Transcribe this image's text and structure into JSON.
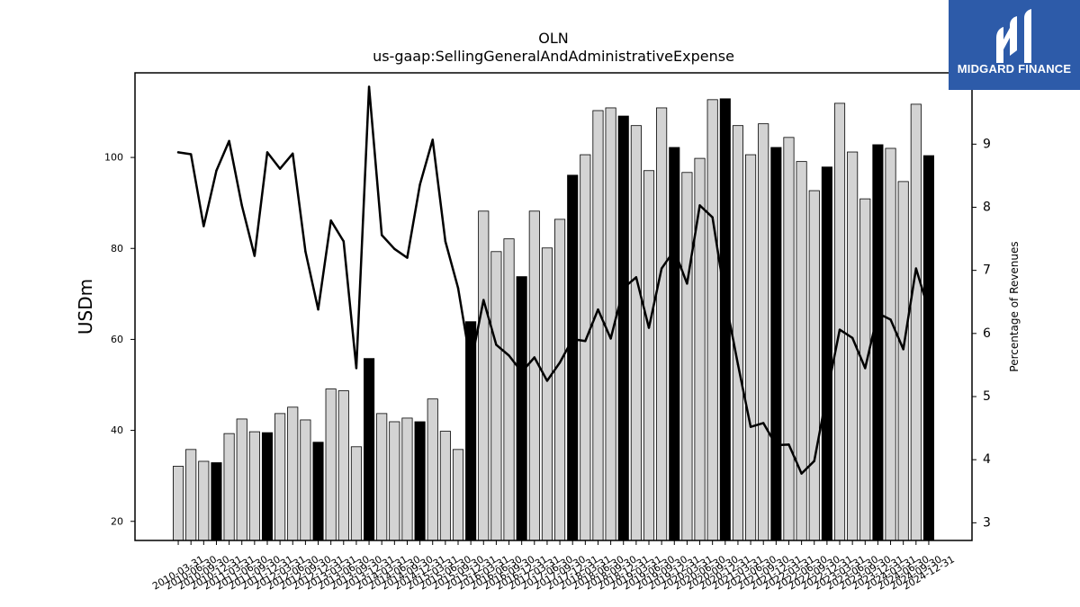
{
  "logo": {
    "text": "MIDGARD FINANCE",
    "icon": "midgard-logo-icon",
    "background": "#2d5ba9"
  },
  "chart_data": {
    "type": "bar",
    "title": "OLN",
    "subtitle": "us-gaap:SellingGeneralAndAdministrativeExpense",
    "xlabel": "",
    "ylabel": "USDm",
    "y2label": "Percentage of Revenues",
    "grid": false,
    "legend": "none",
    "ylim": [
      15.8,
      118.6
    ],
    "y2lim": [
      2.72,
      10.13
    ],
    "yticks": [
      20,
      40,
      60,
      80,
      100
    ],
    "y2ticks": [
      3,
      4,
      5,
      6,
      7,
      8,
      9
    ],
    "categories": [
      "2010-03-31",
      "2010-06-30",
      "2010-09-30",
      "2010-12-31",
      "2011-03-31",
      "2011-06-30",
      "2011-09-30",
      "2011-12-31",
      "2012-03-31",
      "2012-06-30",
      "2012-09-30",
      "2012-12-31",
      "2013-03-31",
      "2013-06-30",
      "2013-09-30",
      "2013-12-31",
      "2014-03-31",
      "2014-06-30",
      "2014-09-30",
      "2014-12-31",
      "2015-03-31",
      "2015-06-30",
      "2015-09-30",
      "2015-12-31",
      "2016-03-31",
      "2016-06-30",
      "2016-09-30",
      "2016-12-31",
      "2017-03-31",
      "2017-06-30",
      "2017-09-30",
      "2017-12-31",
      "2018-03-31",
      "2018-06-30",
      "2018-09-30",
      "2018-12-31",
      "2019-03-31",
      "2019-06-30",
      "2019-09-30",
      "2019-12-31",
      "2020-03-31",
      "2020-06-30",
      "2020-09-30",
      "2020-12-31",
      "2021-03-31",
      "2021-06-30",
      "2021-09-30",
      "2021-12-31",
      "2022-03-31",
      "2022-06-30",
      "2022-09-30",
      "2022-12-31",
      "2023-03-31",
      "2023-06-30",
      "2023-09-30",
      "2023-12-31",
      "2024-03-31",
      "2024-06-30",
      "2024-09-30",
      "2024-12-31"
    ],
    "series": [
      {
        "type": "bar",
        "axis": "left",
        "color": "#d3d3d3",
        "edge_color": "#000000",
        "highlight_color": "#000000",
        "highlight_categories": [
          "2010-12-31",
          "2011-12-31",
          "2012-12-31",
          "2013-12-31",
          "2014-12-31",
          "2015-12-31",
          "2016-12-31",
          "2017-12-31",
          "2018-12-31",
          "2019-12-31",
          "2020-12-31",
          "2021-12-31",
          "2022-12-31",
          "2023-12-31",
          "2024-12-31"
        ],
        "values": [
          32.1,
          35.8,
          33.2,
          32.9,
          39.3,
          42.5,
          39.7,
          39.5,
          43.7,
          45.1,
          42.3,
          37.4,
          49.1,
          48.7,
          36.4,
          55.8,
          43.7,
          41.9,
          42.7,
          41.9,
          46.9,
          39.8,
          35.8,
          63.9,
          88.2,
          79.3,
          82.1,
          73.8,
          88.2,
          80.1,
          86.4,
          96.1,
          100.6,
          110.3,
          110.9,
          109.1,
          107.0,
          97.1,
          110.9,
          102.2,
          96.7,
          99.8,
          112.7,
          112.9,
          107.0,
          100.6,
          107.4,
          102.2,
          104.4,
          99.1,
          92.7,
          97.9,
          111.9,
          101.2,
          90.9,
          102.8,
          102.0,
          94.7,
          111.7,
          100.4
        ]
      },
      {
        "type": "line",
        "axis": "right",
        "color": "#000000",
        "values": [
          8.87,
          8.84,
          7.7,
          8.58,
          9.05,
          8.03,
          7.23,
          8.87,
          8.61,
          8.85,
          7.3,
          6.38,
          7.79,
          7.46,
          5.45,
          9.91,
          7.56,
          7.34,
          7.2,
          8.36,
          9.07,
          7.46,
          6.72,
          5.51,
          6.53,
          5.82,
          5.65,
          5.39,
          5.62,
          5.25,
          5.54,
          5.91,
          5.88,
          6.38,
          5.92,
          6.72,
          6.89,
          6.09,
          7.03,
          7.32,
          6.79,
          8.03,
          7.84,
          6.55,
          5.51,
          4.52,
          4.58,
          4.23,
          4.24,
          3.78,
          3.98,
          5.05,
          6.06,
          5.93,
          5.45,
          6.32,
          6.22,
          5.75,
          7.03,
          6.36
        ]
      }
    ]
  }
}
